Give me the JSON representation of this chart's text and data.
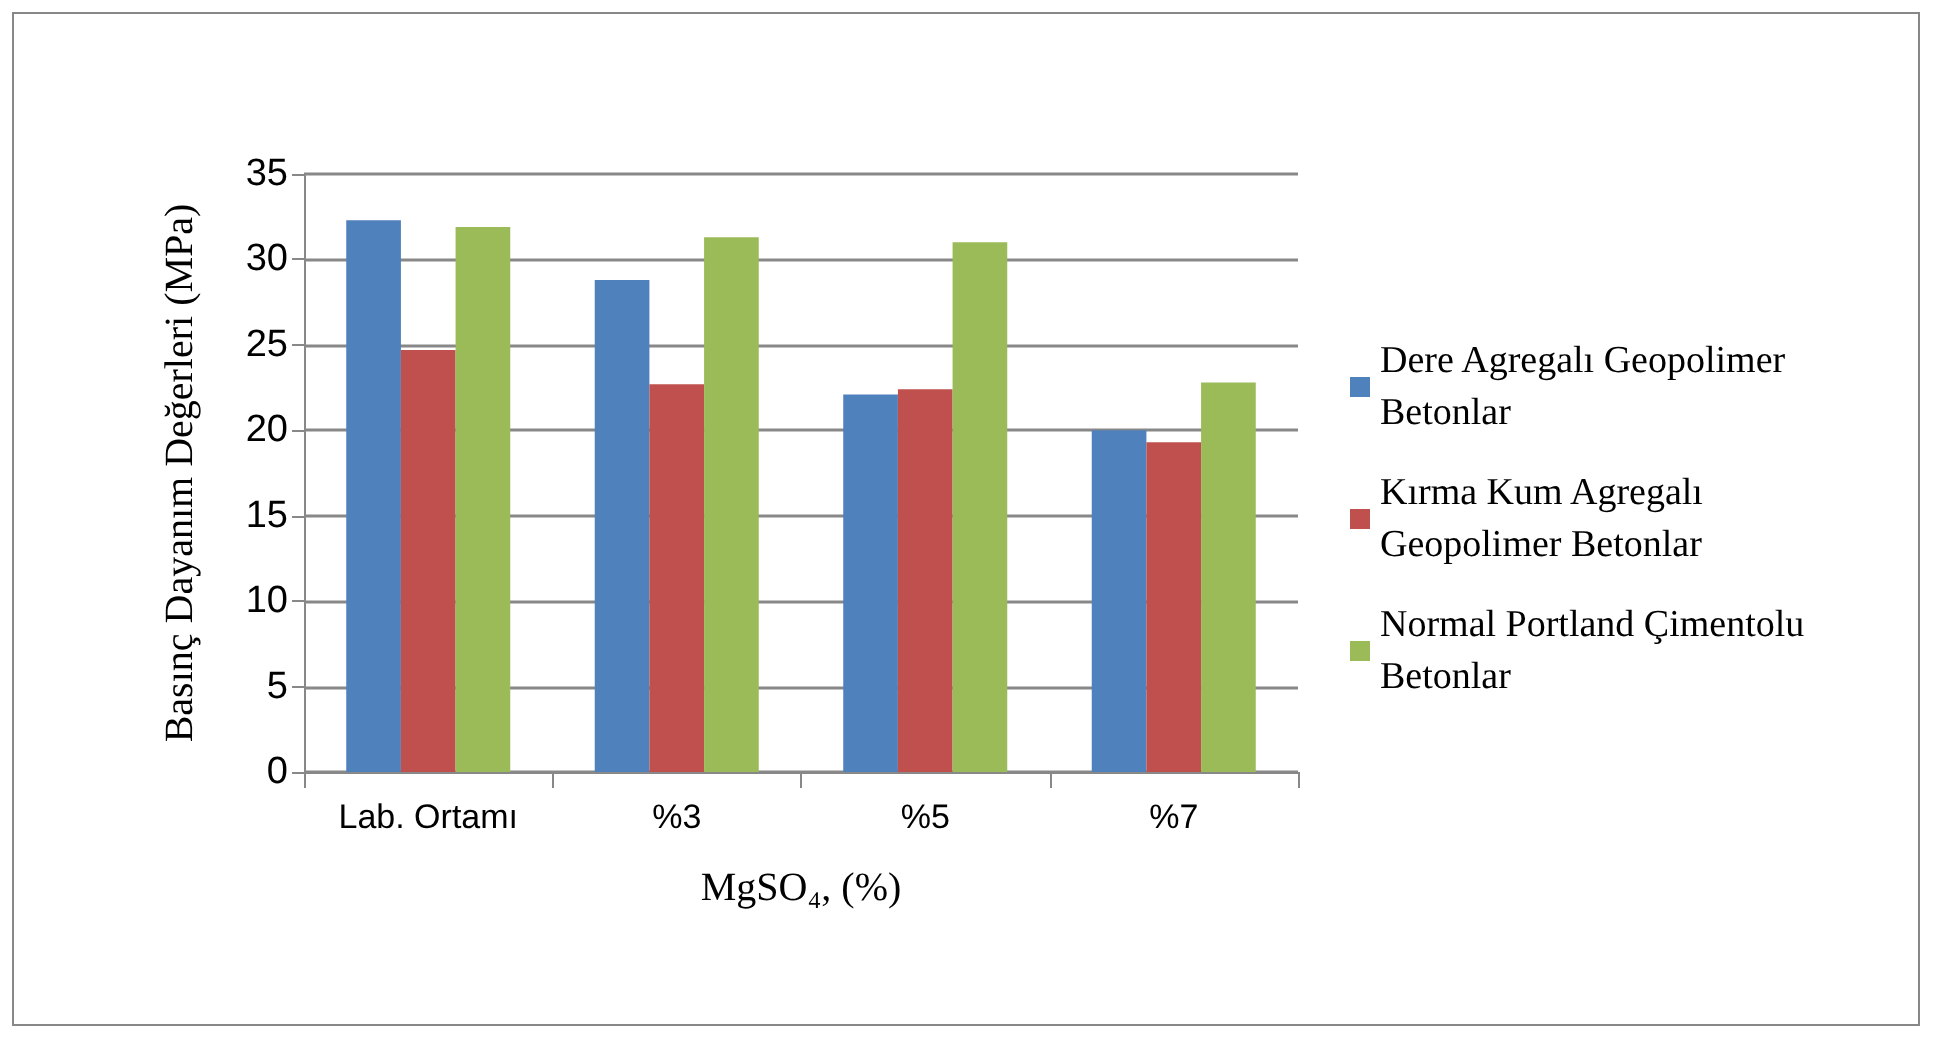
{
  "chart_data": {
    "type": "bar",
    "xlabel": "MgSO₄, (%)",
    "ylabel": "Basınç Dayanım Değerleri (MPa)",
    "categories": [
      "Lab. Ortamı",
      "%3",
      "%5",
      "%7"
    ],
    "series": [
      {
        "name": "Dere Agregalı Geopolimer Betonlar",
        "color": "#4f81bd",
        "values": [
          32.3,
          28.8,
          22.1,
          20.0
        ]
      },
      {
        "name": "Kırma Kum Agregalı Geopolimer Betonlar",
        "color": "#c0504d",
        "values": [
          24.7,
          22.7,
          22.4,
          19.3
        ]
      },
      {
        "name": "Normal Portland Çimentolu Betonlar",
        "color": "#9bbb59",
        "values": [
          31.9,
          31.3,
          31.0,
          22.8
        ]
      }
    ],
    "ylim": [
      0,
      35
    ],
    "yticks": [
      0,
      5,
      10,
      15,
      20,
      25,
      30,
      35
    ],
    "grid": "y",
    "legend": "right"
  }
}
